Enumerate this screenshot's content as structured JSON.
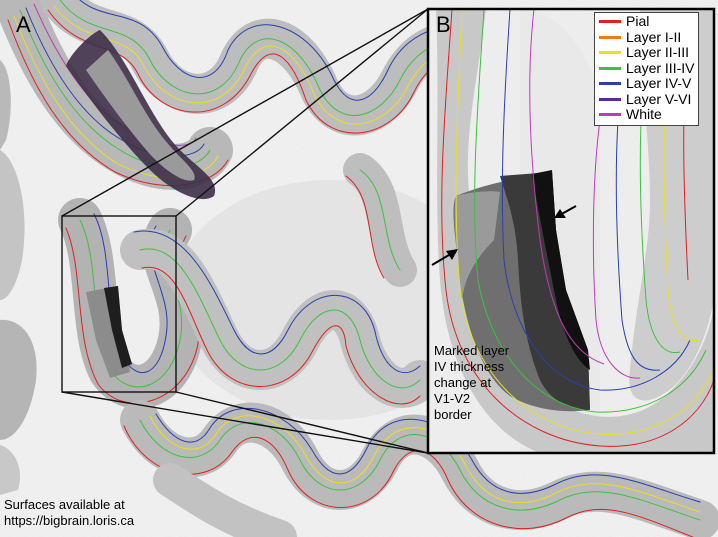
{
  "panels": {
    "a_label": "A",
    "b_label": "B"
  },
  "legend": [
    {
      "label": "Pial",
      "color": "#e02020"
    },
    {
      "label": "Layer I-II",
      "color": "#f07a1a"
    },
    {
      "label": "Layer II-III",
      "color": "#e8e020"
    },
    {
      "label": "Layer III-IV",
      "color": "#3cc23c"
    },
    {
      "label": "Layer IV-V",
      "color": "#2a3fb0"
    },
    {
      "label": "Layer V-VI",
      "color": "#5a2a9a"
    },
    {
      "label": "White",
      "color": "#c03ab8"
    }
  ],
  "annotation": "Marked layer IV thickness change at V1-V2 border",
  "caption": {
    "line1": "Surfaces available at",
    "line2": "https://bigbrain.loris.ca"
  }
}
